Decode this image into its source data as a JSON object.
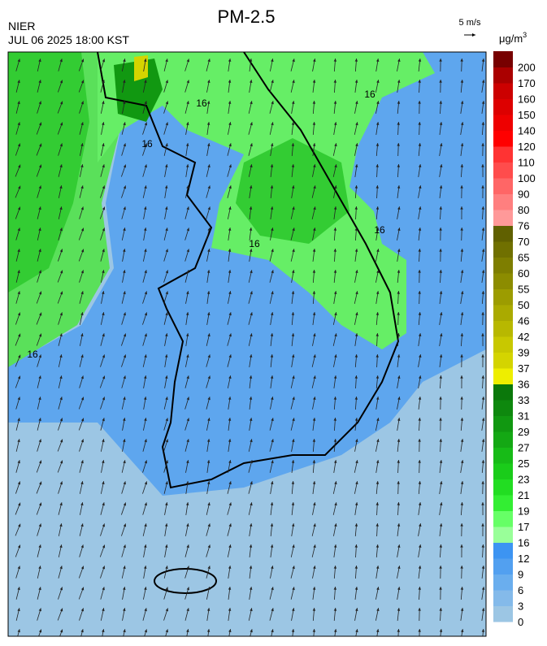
{
  "header": {
    "title": "PM-2.5",
    "agency": "NIER",
    "datetime": "JUL 06 2025 18:00 KST",
    "wind_scale": "5 m/s"
  },
  "legend": {
    "unit": "μg/m",
    "unit_sup": "3",
    "levels": [
      {
        "label": "0",
        "color": "#9cc6e4"
      },
      {
        "label": "3",
        "color": "#84baea"
      },
      {
        "label": "6",
        "color": "#6aaeee"
      },
      {
        "label": "9",
        "color": "#52a0f0"
      },
      {
        "label": "12",
        "color": "#3c94f2"
      },
      {
        "label": "16",
        "color": "#99ff99"
      },
      {
        "label": "17",
        "color": "#66ff66"
      },
      {
        "label": "19",
        "color": "#33ee33"
      },
      {
        "label": "21",
        "color": "#22dd22"
      },
      {
        "label": "23",
        "color": "#1acc1a"
      },
      {
        "label": "25",
        "color": "#17bb17"
      },
      {
        "label": "27",
        "color": "#14a814"
      },
      {
        "label": "29",
        "color": "#119811"
      },
      {
        "label": "31",
        "color": "#0e880e"
      },
      {
        "label": "33",
        "color": "#0b780b"
      },
      {
        "label": "36",
        "color": "#eeee00"
      },
      {
        "label": "37",
        "color": "#d4d400"
      },
      {
        "label": "39",
        "color": "#c8c800"
      },
      {
        "label": "42",
        "color": "#b8b800"
      },
      {
        "label": "46",
        "color": "#aaaa00"
      },
      {
        "label": "50",
        "color": "#9c9c00"
      },
      {
        "label": "55",
        "color": "#8c8c00"
      },
      {
        "label": "60",
        "color": "#7e7e00"
      },
      {
        "label": "65",
        "color": "#707000"
      },
      {
        "label": "70",
        "color": "#606000"
      },
      {
        "label": "76",
        "color": "#ff9999"
      },
      {
        "label": "80",
        "color": "#ff7f7f"
      },
      {
        "label": "90",
        "color": "#ff6666"
      },
      {
        "label": "100",
        "color": "#ff4c4c"
      },
      {
        "label": "110",
        "color": "#ff3333"
      },
      {
        "label": "120",
        "color": "#ff0000"
      },
      {
        "label": "140",
        "color": "#ee0000"
      },
      {
        "label": "150",
        "color": "#dd0000"
      },
      {
        "label": "160",
        "color": "#cc0000"
      },
      {
        "label": "170",
        "color": "#aa0000"
      },
      {
        "label": "200",
        "color": "#770000"
      }
    ]
  },
  "map": {
    "contour_labels": [
      "16",
      "16",
      "16",
      "16",
      "16",
      "16"
    ]
  }
}
